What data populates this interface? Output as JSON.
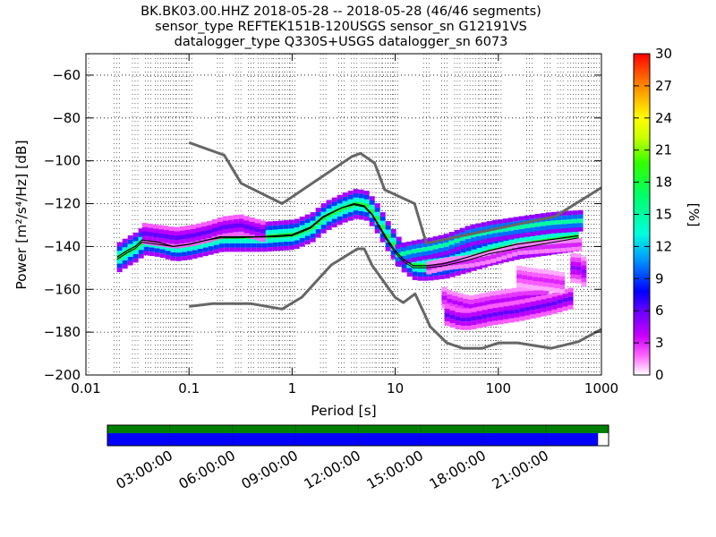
{
  "chart_data": {
    "type": "heatmap",
    "title_lines": [
      "BK.BK03.00.HHZ   2018-05-28 -- 2018-05-28  (46/46 segments)",
      "sensor_type REFTEK151B-120USGS sensor_sn G12191VS",
      "datalogger_type Q330S+USGS datalogger_sn 6073"
    ],
    "xlabel": "Period [s]",
    "ylabel": "Power [m²/s⁴/Hz] [dB]",
    "xscale": "log",
    "xlim": [
      0.01,
      1000
    ],
    "ylim": [
      -200,
      -50
    ],
    "x_ticks": [
      {
        "value": 0.01,
        "label": "0.01"
      },
      {
        "value": 0.1,
        "label": "0.1"
      },
      {
        "value": 1,
        "label": "1"
      },
      {
        "value": 10,
        "label": "10"
      },
      {
        "value": 100,
        "label": "100"
      },
      {
        "value": 1000,
        "label": "1000"
      }
    ],
    "y_ticks": [
      -60,
      -80,
      -100,
      -120,
      -140,
      -160,
      -180,
      -200
    ],
    "grid": "dotted",
    "colorbar": {
      "label": "[%]",
      "min": 0,
      "max": 30,
      "ticks": [
        0,
        3,
        6,
        9,
        12,
        15,
        18,
        21,
        24,
        27,
        30
      ]
    },
    "noise_models": [
      {
        "name": "NHNM",
        "color": "#666666",
        "x": [
          0.1,
          0.22,
          0.32,
          0.8,
          3.8,
          4.6,
          6.3,
          7.9,
          15.4,
          20,
          354.8,
          1000
        ],
        "y": [
          -91.5,
          -97.4,
          -110.5,
          -120,
          -98,
          -96.5,
          -101,
          -113.5,
          -120,
          -138.5,
          -126,
          -112.5
        ]
      },
      {
        "name": "NLNM",
        "color": "#666666",
        "x": [
          0.1,
          0.17,
          0.4,
          0.8,
          1.24,
          2.4,
          4.3,
          5,
          6,
          10,
          12,
          15.6,
          21.9,
          31.6,
          45,
          70,
          101,
          154,
          328,
          600,
          1000
        ],
        "y": [
          -168,
          -166.7,
          -166.7,
          -169.2,
          -163.7,
          -148.6,
          -141.1,
          -141.1,
          -149,
          -163.8,
          -166.2,
          -162.1,
          -177.5,
          -185,
          -187.5,
          -187.5,
          -185,
          -185,
          -187.5,
          -184.4,
          -178.6
        ]
      }
    ],
    "mode_line": {
      "color": "#000000",
      "x": [
        0.02,
        0.025,
        0.03,
        0.035,
        0.05,
        0.07,
        0.1,
        0.15,
        0.2,
        0.3,
        0.5,
        0.7,
        1,
        1.5,
        2,
        3,
        4,
        5,
        6,
        8,
        10,
        12,
        15,
        20,
        30,
        50,
        80,
        150,
        300,
        600
      ],
      "y": [
        -145,
        -142,
        -140,
        -137,
        -138,
        -140,
        -139,
        -137,
        -135.5,
        -135.5,
        -135.5,
        -135,
        -134.5,
        -131,
        -126,
        -122,
        -120,
        -121,
        -125,
        -135,
        -142,
        -146,
        -149,
        -149,
        -148,
        -145,
        -142,
        -139,
        -137,
        -135
      ]
    },
    "mean_line": {
      "color": "#000000",
      "x": [
        0.02,
        0.025,
        0.03,
        0.035,
        0.05,
        0.07,
        0.1,
        0.15,
        0.2,
        0.3,
        0.5,
        0.7,
        1,
        1.5,
        2,
        3,
        4,
        5,
        6,
        8,
        10,
        12,
        15,
        20,
        30,
        50,
        80,
        150,
        300,
        600
      ],
      "y": [
        -146,
        -143,
        -141,
        -138,
        -139,
        -140,
        -139,
        -137,
        -136,
        -136,
        -135.5,
        -135.5,
        -135,
        -131.5,
        -126.5,
        -122,
        -120.5,
        -121.5,
        -125.5,
        -136,
        -143,
        -147,
        -150,
        -150,
        -149,
        -146.5,
        -143.5,
        -141,
        -138.5,
        -136
      ]
    },
    "psd_distribution": [
      {
        "x": [
          0.02,
          0.025,
          0.03,
          0.035,
          0.05,
          0.07,
          0.1,
          0.15,
          0.2,
          0.3,
          0.5,
          0.7,
          1,
          1.5,
          2,
          3,
          4,
          5,
          6,
          8,
          10,
          12,
          15,
          20,
          30,
          50,
          80,
          150,
          300,
          600
        ],
        "y_center": [
          -145,
          -142,
          -140,
          -137,
          -138,
          -140,
          -139,
          -137,
          -135.5,
          -135.5,
          -135.5,
          -135,
          -134.5,
          -131,
          -126,
          -122,
          -120,
          -121,
          -125,
          -135,
          -142,
          -146,
          -149,
          -149,
          -148,
          -145,
          -142,
          -139,
          -137,
          -135
        ],
        "spread": 3,
        "percent": 18
      },
      {
        "x": [
          0.035,
          0.05,
          0.07,
          0.1,
          0.15,
          0.2,
          0.3,
          0.5
        ],
        "y_center": [
          -134,
          -135,
          -136,
          -135,
          -133,
          -131,
          -130,
          -133
        ],
        "spread": 2,
        "percent": 6
      },
      {
        "x": [
          10,
          12,
          15,
          20,
          30,
          50,
          80,
          150,
          300,
          600
        ],
        "y_center": [
          -144,
          -143,
          -142,
          -141,
          -139,
          -135,
          -133,
          -131,
          -129,
          -128
        ],
        "spread": 2,
        "percent": 15
      },
      {
        "x": [
          20,
          30,
          50,
          80,
          150,
          300,
          600
        ],
        "y_center": [
          -150,
          -148,
          -147,
          -145,
          -141,
          -140,
          -139
        ],
        "spread": 1,
        "percent": 3
      },
      {
        "x": [
          25,
          30,
          50,
          80,
          150,
          300
        ],
        "y_center": [
          -162,
          -165,
          -168,
          -166,
          -164,
          -163
        ],
        "spread": 2,
        "percent": 4
      },
      {
        "x": [
          30,
          40,
          50,
          80,
          150,
          300,
          500
        ],
        "y_center": [
          -172,
          -174,
          -174,
          -172,
          -170,
          -167,
          -164
        ],
        "spread": 2,
        "percent": 6
      },
      {
        "x": [
          500,
          550,
          600,
          650
        ],
        "y_center": [
          -150,
          -150,
          -151,
          -152
        ],
        "spread": 3,
        "percent": 5
      },
      {
        "x": [
          150,
          200,
          300,
          400
        ],
        "y_center": [
          -154,
          -155,
          -156,
          -157
        ],
        "spread": 2,
        "percent": 3
      }
    ]
  },
  "timeline": {
    "ticks": [
      "03:00:00",
      "06:00:00",
      "09:00:00",
      "12:00:00",
      "15:00:00",
      "18:00:00",
      "21:00:00"
    ],
    "tick_hours": [
      3,
      6,
      9,
      12,
      15,
      18,
      21
    ],
    "data_coverage_fraction": 1.0,
    "psd_coverage_fraction": 0.979,
    "colors": {
      "data": "#008000",
      "psd": "#0000ff"
    }
  }
}
